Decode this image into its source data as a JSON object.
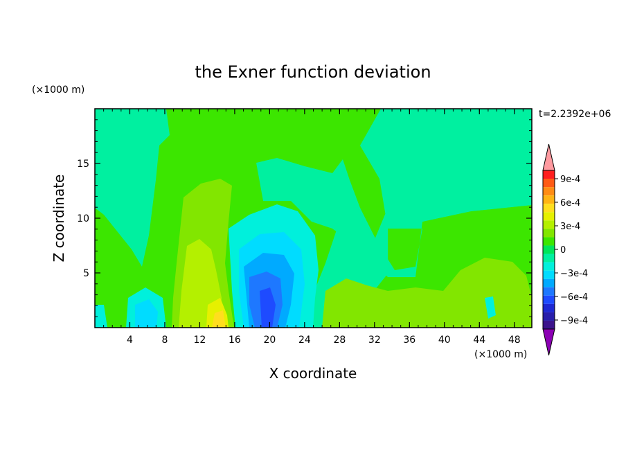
{
  "chart_data": {
    "type": "heatmap",
    "title": "the Exner function deviation",
    "xlabel": "X coordinate",
    "ylabel": "Z coordinate",
    "x_unit": "(×1000 m)",
    "y_unit": "(×1000 m)",
    "time_label": "t=2.2392e+06",
    "xlim": [
      0,
      50
    ],
    "ylim": [
      0,
      20
    ],
    "x_ticks": [
      "4",
      "8",
      "12",
      "16",
      "20",
      "24",
      "28",
      "32",
      "36",
      "40",
      "44",
      "48"
    ],
    "y_ticks": [
      "5",
      "10",
      "15"
    ],
    "colorbar": {
      "labels": [
        "9e-4",
        "6e-4",
        "3e-4",
        "0",
        "−3e-4",
        "−6e-4",
        "−9e-4"
      ],
      "colors": [
        "#ff9aa0",
        "#ff1e1e",
        "#ff5a14",
        "#ff8c14",
        "#ffb414",
        "#ffde1e",
        "#e6f000",
        "#b4f000",
        "#82e600",
        "#3ce600",
        "#00e65a",
        "#00f0a0",
        "#00f0dc",
        "#00dcff",
        "#00aaff",
        "#1e78ff",
        "#1e4bff",
        "#1e28d2",
        "#281eaa",
        "#3c148c",
        "#8c00b4"
      ]
    }
  }
}
